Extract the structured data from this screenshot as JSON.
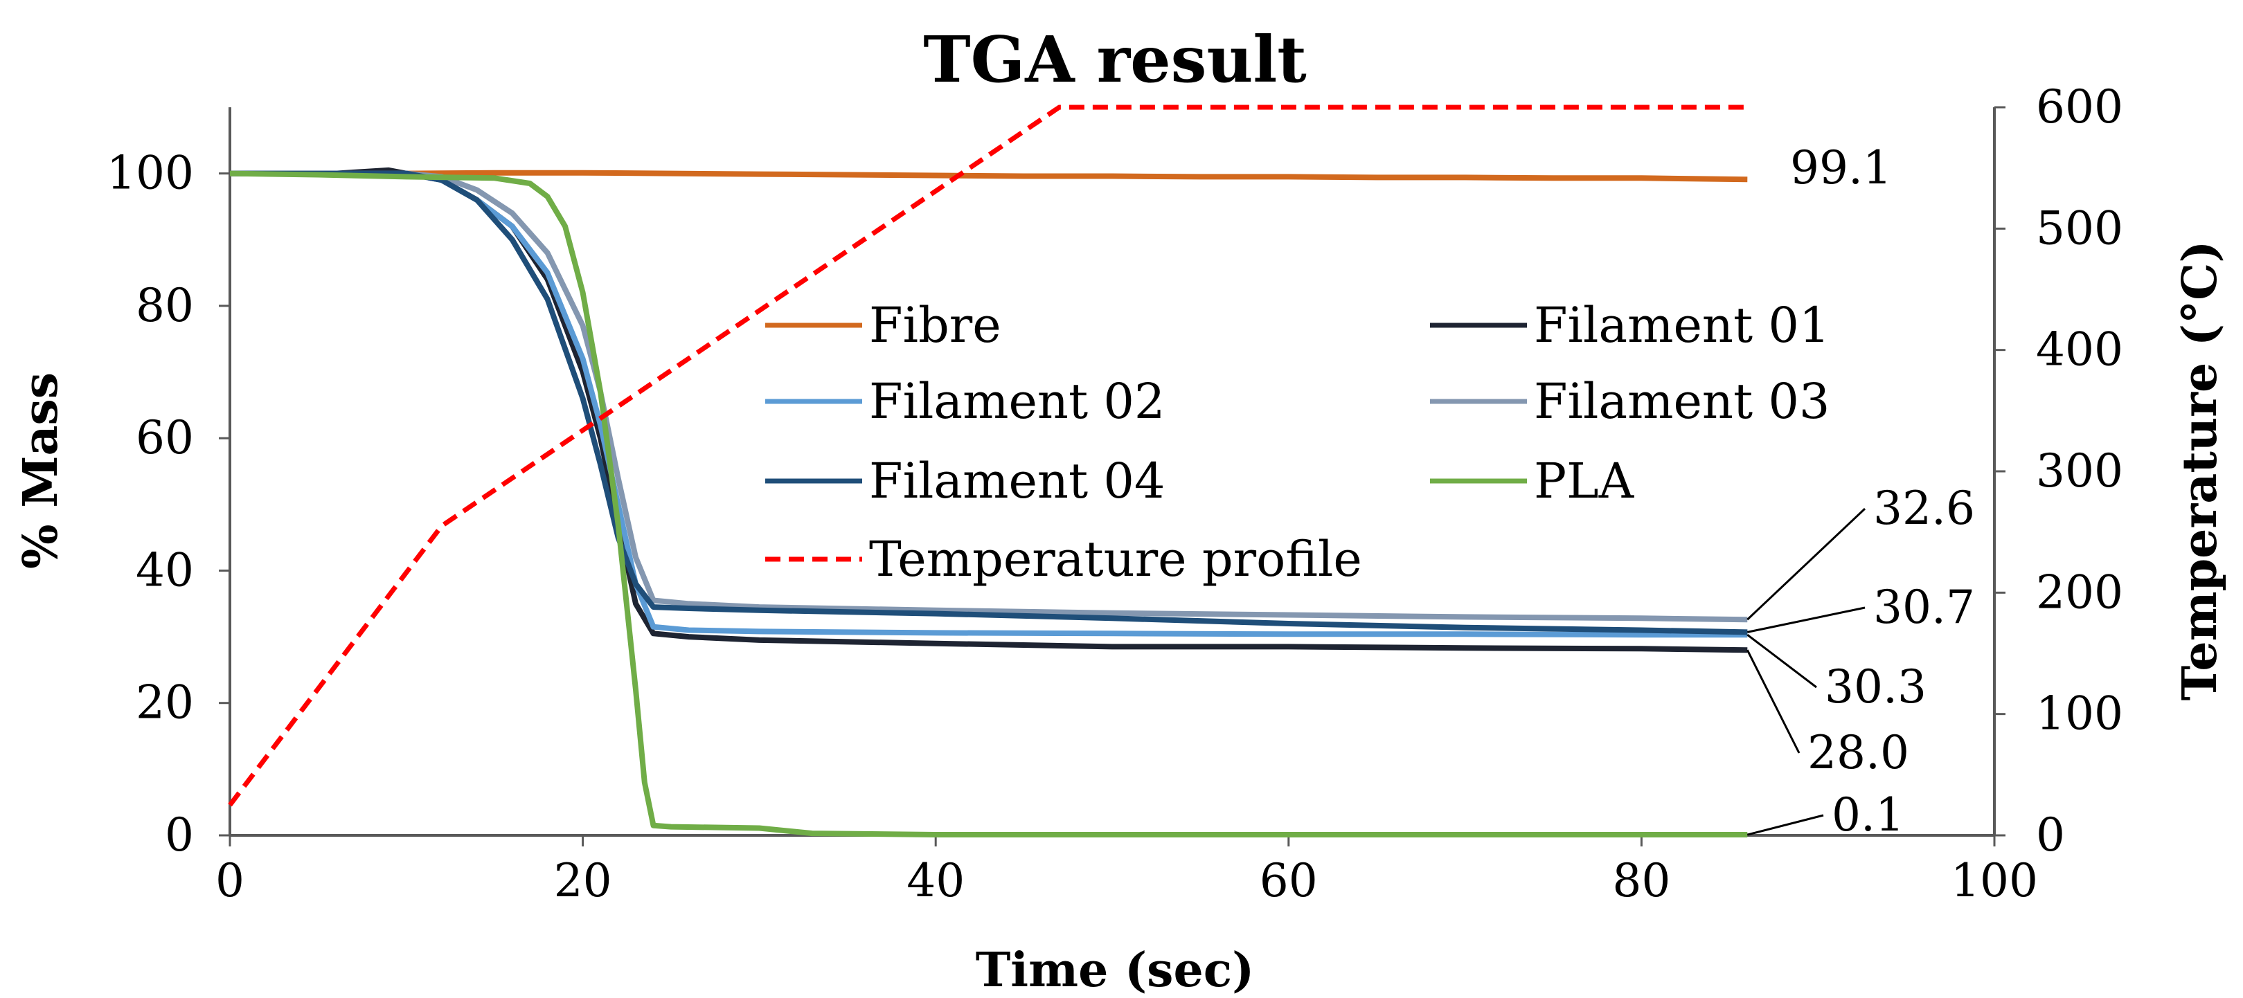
{
  "chart_data": {
    "type": "line",
    "title": "TGA result",
    "xlabel": "Time (sec)",
    "ylabel": "% Mass",
    "y2label": "Temperature (°C)",
    "xlim": [
      0,
      100
    ],
    "ylim": [
      0,
      110
    ],
    "y2lim": [
      0,
      600
    ],
    "xticks": [
      0,
      20,
      40,
      60,
      80,
      100
    ],
    "yticks": [
      0,
      20,
      40,
      60,
      80,
      100
    ],
    "y2ticks": [
      0,
      100,
      200,
      300,
      400,
      500,
      600
    ],
    "grid": false,
    "legend_position": "center",
    "series": [
      {
        "key": "fibre",
        "name": "Fibre",
        "axis": "left",
        "color": "#D2691E",
        "x": [
          0,
          5,
          10,
          15,
          20,
          25,
          30,
          35,
          40,
          45,
          50,
          55,
          60,
          65,
          70,
          75,
          80,
          86
        ],
        "y": [
          100,
          100,
          100,
          100.1,
          100.1,
          100,
          99.9,
          99.8,
          99.7,
          99.6,
          99.6,
          99.5,
          99.5,
          99.4,
          99.4,
          99.3,
          99.3,
          99.1
        ]
      },
      {
        "key": "filament01",
        "name": "Filament 01",
        "axis": "left",
        "color": "#1E2432",
        "x": [
          0,
          6,
          9,
          12,
          14,
          16,
          18,
          20,
          21,
          22,
          23,
          24,
          26,
          30,
          40,
          50,
          60,
          70,
          80,
          86
        ],
        "y": [
          100,
          100,
          100.5,
          99,
          96,
          92,
          84,
          70,
          60,
          47,
          35,
          30.5,
          30,
          29.5,
          29,
          28.5,
          28.5,
          28.3,
          28.2,
          28.0
        ]
      },
      {
        "key": "filament02",
        "name": "Filament 02",
        "axis": "left",
        "color": "#5B9BD5",
        "x": [
          0,
          6,
          10,
          12,
          14,
          16,
          18,
          20,
          21,
          22,
          23,
          24,
          26,
          30,
          40,
          50,
          60,
          70,
          80,
          86
        ],
        "y": [
          100,
          100,
          100,
          99,
          96,
          92,
          85,
          72,
          62,
          50,
          38,
          31.5,
          31,
          30.8,
          30.6,
          30.5,
          30.4,
          30.4,
          30.3,
          30.3
        ]
      },
      {
        "key": "filament03",
        "name": "Filament 03",
        "axis": "left",
        "color": "#8497B0",
        "x": [
          0,
          6,
          10,
          12,
          14,
          16,
          18,
          20,
          21,
          22,
          23,
          24,
          26,
          30,
          40,
          50,
          60,
          70,
          80,
          86
        ],
        "y": [
          100,
          100,
          100,
          99.5,
          97.5,
          94,
          88,
          77,
          67,
          54,
          42,
          35.5,
          35,
          34.5,
          34,
          33.6,
          33.3,
          33,
          32.8,
          32.6
        ]
      },
      {
        "key": "filament04",
        "name": "Filament 04",
        "axis": "left",
        "color": "#1F4E79",
        "x": [
          0,
          6,
          10,
          12,
          14,
          16,
          18,
          20,
          21,
          22,
          23,
          24,
          26,
          30,
          40,
          50,
          60,
          70,
          80,
          86
        ],
        "y": [
          100,
          100,
          100,
          99,
          96,
          90,
          81,
          66,
          56,
          45,
          38,
          34.5,
          34.3,
          34,
          33.5,
          32.8,
          32,
          31.4,
          31,
          30.7
        ]
      },
      {
        "key": "pla",
        "name": "PLA",
        "axis": "left",
        "color": "#70AD47",
        "x": [
          0,
          5,
          10,
          15,
          17,
          18,
          19,
          20,
          21,
          22,
          23,
          23.5,
          24,
          25,
          30,
          33,
          40,
          50,
          60,
          70,
          80,
          86
        ],
        "y": [
          100,
          99.8,
          99.5,
          99.3,
          98.5,
          96.5,
          92,
          82,
          67,
          47,
          22,
          8,
          1.5,
          1.3,
          1.1,
          0.3,
          0.1,
          0.1,
          0.1,
          0.1,
          0.1,
          0.1
        ]
      },
      {
        "key": "temperature",
        "name": "Temperature profile",
        "axis": "right",
        "color": "#FF0000",
        "dashed": true,
        "x": [
          0,
          12,
          47,
          86
        ],
        "y": [
          25,
          255,
          600,
          600
        ]
      }
    ],
    "legend_order": [
      "fibre",
      "filament01",
      "filament02",
      "filament03",
      "filament04",
      "pla",
      "temperature"
    ],
    "end_labels": [
      {
        "key": "fibre",
        "text": "99.1",
        "value": 99.1
      },
      {
        "key": "filament03",
        "text": "32.6",
        "value": 32.6
      },
      {
        "key": "filament04",
        "text": "30.7",
        "value": 30.7
      },
      {
        "key": "filament02",
        "text": "30.3",
        "value": 30.3
      },
      {
        "key": "filament01",
        "text": "28.0",
        "value": 28.0
      },
      {
        "key": "pla",
        "text": "0.1",
        "value": 0.1
      }
    ]
  }
}
